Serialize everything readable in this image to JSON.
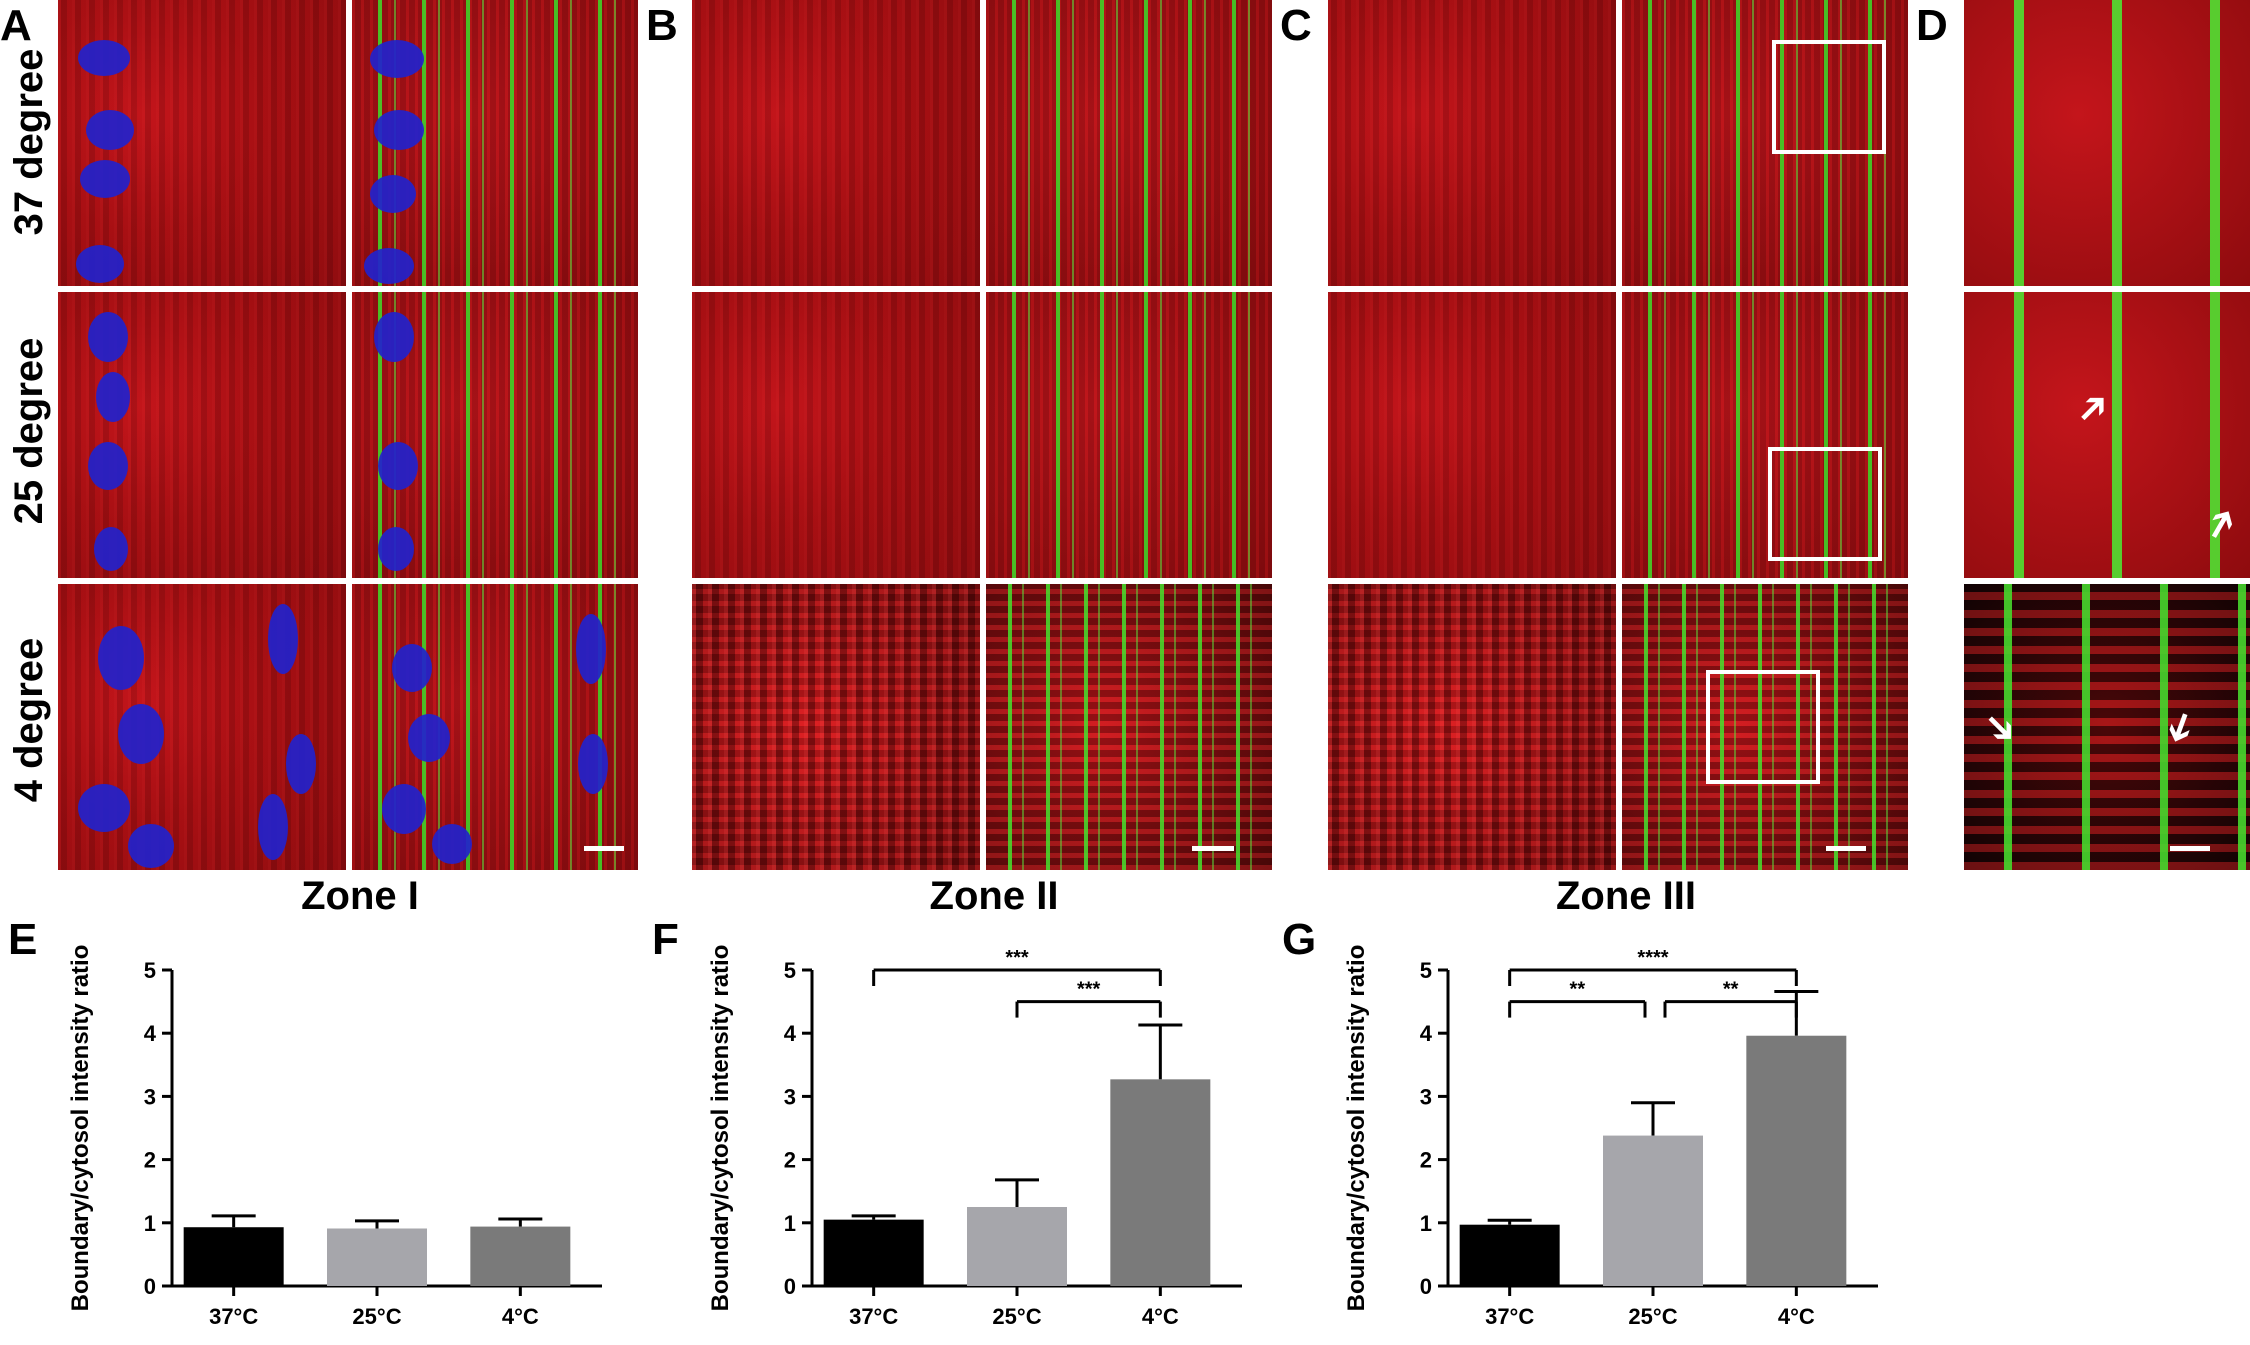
{
  "panel_letters": [
    "A",
    "B",
    "C",
    "D",
    "E",
    "F",
    "G"
  ],
  "row_labels": [
    "37 degree",
    "25 degree",
    "4 degree"
  ],
  "zone_labels": [
    "Zone I",
    "Zone II",
    "Zone III"
  ],
  "colors": {
    "red_channel": "#c0141a",
    "green_channel": "#41d22a",
    "blue_channel": "#2222cc",
    "bar_37": "#000000",
    "bar_25": "#a6a6ab",
    "bar_4": "#7a7a7a"
  },
  "arrow_icons": [
    "arrow-up-right-icon",
    "arrow-up-right-icon",
    "arrow-down-right-icon",
    "arrow-down-right-icon"
  ],
  "chart_data": [
    {
      "panel": "E",
      "type": "bar",
      "categories": [
        "37°C",
        "25°C",
        "4°C"
      ],
      "values": [
        0.93,
        0.91,
        0.94
      ],
      "errors": [
        0.18,
        0.12,
        0.12
      ],
      "ylabel": "Boundary/cytosol intensity ratio",
      "xlabel": "",
      "ylim": [
        0,
        5
      ],
      "yticks": [
        "0",
        "1",
        "2",
        "3",
        "4",
        "5"
      ],
      "significance": []
    },
    {
      "panel": "F",
      "type": "bar",
      "categories": [
        "37°C",
        "25°C",
        "4°C"
      ],
      "values": [
        1.05,
        1.25,
        3.27
      ],
      "errors": [
        0.06,
        0.43,
        0.86
      ],
      "ylabel": "Boundary/cytosol intensity ratio",
      "xlabel": "",
      "ylim": [
        0,
        5
      ],
      "yticks": [
        "0",
        "1",
        "2",
        "3",
        "4",
        "5"
      ],
      "significance": [
        {
          "from": 0,
          "to": 2,
          "label": "***",
          "level": 5.0
        },
        {
          "from": 1,
          "to": 2,
          "label": "***",
          "level": 4.5
        }
      ]
    },
    {
      "panel": "G",
      "type": "bar",
      "categories": [
        "37°C",
        "25°C",
        "4°C"
      ],
      "values": [
        0.97,
        2.38,
        3.96
      ],
      "errors": [
        0.07,
        0.52,
        0.7
      ],
      "ylabel": "Boundary/cytosol intensity ratio",
      "xlabel": "",
      "ylim": [
        0,
        5
      ],
      "yticks": [
        "0",
        "1",
        "2",
        "3",
        "4",
        "5"
      ],
      "significance": [
        {
          "from": 0,
          "to": 2,
          "label": "****",
          "level": 5.0
        },
        {
          "from": 0,
          "to": 1,
          "label": "**",
          "level": 4.5
        },
        {
          "from": 1,
          "to": 2,
          "label": "**",
          "level": 4.5
        }
      ]
    }
  ]
}
